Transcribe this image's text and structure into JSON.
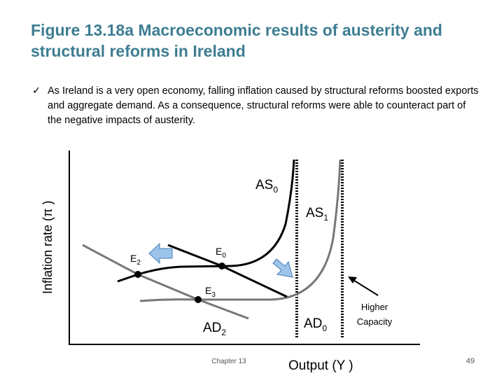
{
  "title": "Figure 13.18a Macroeconomic results of austerity and structural reforms in Ireland",
  "bullet": "As Ireland is a very open economy, falling inflation caused by structural reforms boosted exports and aggregate demand. As a consequence, structural reforms were able to counteract part of the negative impacts of austerity.",
  "diagram": {
    "y_axis_label": "Inflation rate (π )",
    "x_axis_label": "Output (Y )",
    "curve_labels": [
      {
        "text": "AS",
        "sub": "0"
      },
      {
        "text": "AS",
        "sub": "1"
      },
      {
        "text": "AD",
        "sub": "0"
      },
      {
        "text": "AD",
        "sub": "2"
      }
    ],
    "points": [
      {
        "text": "E",
        "sub": "2"
      },
      {
        "text": "E",
        "sub": "0"
      },
      {
        "text": "E",
        "sub": "3"
      }
    ],
    "annotation": "Higher Capacity"
  },
  "footer": {
    "chapter": "Chapter 13",
    "page": "49"
  }
}
